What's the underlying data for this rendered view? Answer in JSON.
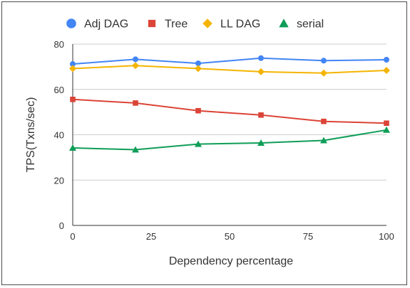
{
  "chart_data": {
    "type": "line",
    "title": "",
    "xlabel": "Dependency percentage",
    "ylabel": "TPS(Txns/sec)",
    "xlim": [
      0,
      100
    ],
    "ylim": [
      0,
      80
    ],
    "x_ticks": [
      0,
      25,
      50,
      75,
      100
    ],
    "y_ticks": [
      0,
      20,
      40,
      60,
      80
    ],
    "grid": "horizontal",
    "legend_position": "top",
    "x": [
      0,
      20,
      40,
      60,
      80,
      100
    ],
    "series": [
      {
        "name": "Adj DAG",
        "color": "#4285f4",
        "marker": "circle",
        "values": [
          71.2,
          73.3,
          71.5,
          73.8,
          72.7,
          73.1
        ]
      },
      {
        "name": "Tree",
        "color": "#db4437",
        "marker": "square",
        "values": [
          55.6,
          54.0,
          50.6,
          48.7,
          45.9,
          45.1
        ]
      },
      {
        "name": "LL DAG",
        "color": "#f4b400",
        "marker": "diamond",
        "values": [
          69.2,
          70.5,
          69.2,
          67.8,
          67.2,
          68.4
        ]
      },
      {
        "name": "serial",
        "color": "#0f9d58",
        "marker": "triangle",
        "values": [
          34.2,
          33.4,
          35.9,
          36.4,
          37.5,
          42.1
        ]
      }
    ]
  }
}
